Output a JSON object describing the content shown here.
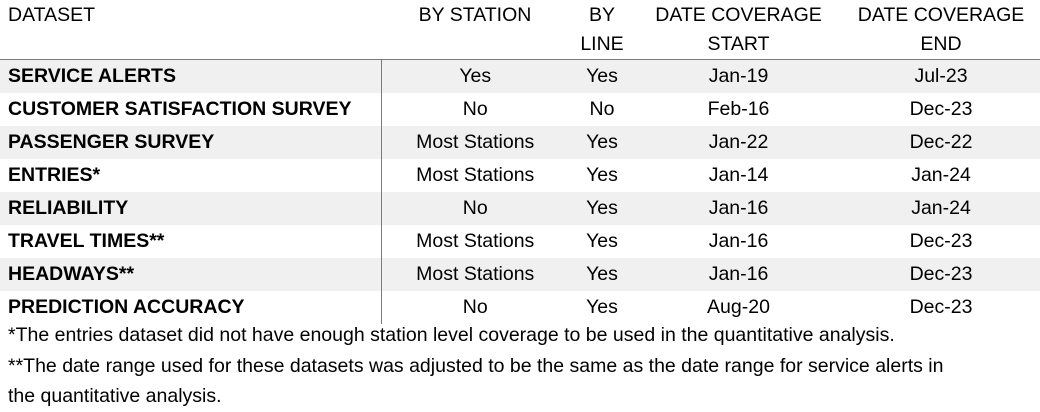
{
  "headers": {
    "dataset": "DATASET",
    "by_station": "BY STATION",
    "by_line_1": "BY",
    "by_line_2": "LINE",
    "start_1": "DATE COVERAGE",
    "start_2": "START",
    "end_1": "DATE COVERAGE",
    "end_2": "END"
  },
  "rows": [
    {
      "dataset": "SERVICE ALERTS",
      "by_station": "Yes",
      "by_line": "Yes",
      "start": "Jan-19",
      "end": "Jul-23"
    },
    {
      "dataset": "CUSTOMER SATISFACTION SURVEY",
      "by_station": "No",
      "by_line": "No",
      "start": "Feb-16",
      "end": "Dec-23"
    },
    {
      "dataset": "PASSENGER SURVEY",
      "by_station": "Most Stations",
      "by_line": "Yes",
      "start": "Jan-22",
      "end": "Dec-22"
    },
    {
      "dataset": "ENTRIES*",
      "by_station": "Most Stations",
      "by_line": "Yes",
      "start": "Jan-14",
      "end": "Jan-24"
    },
    {
      "dataset": "RELIABILITY",
      "by_station": "No",
      "by_line": "Yes",
      "start": "Jan-16",
      "end": "Jan-24"
    },
    {
      "dataset": "TRAVEL TIMES**",
      "by_station": "Most Stations",
      "by_line": "Yes",
      "start": "Jan-16",
      "end": "Dec-23"
    },
    {
      "dataset": "HEADWAYS**",
      "by_station": "Most Stations",
      "by_line": "Yes",
      "start": "Jan-16",
      "end": "Dec-23"
    },
    {
      "dataset": "PREDICTION ACCURACY",
      "by_station": "No",
      "by_line": "Yes",
      "start": "Aug-20",
      "end": "Dec-23"
    }
  ],
  "notes": {
    "note1": "*The entries dataset did not have enough station level coverage to be used in the quantitative analysis.",
    "note2_line1": "**The date range used for these datasets was adjusted to be the same as the date range for service alerts in",
    "note2_line2": "the quantitative analysis."
  }
}
